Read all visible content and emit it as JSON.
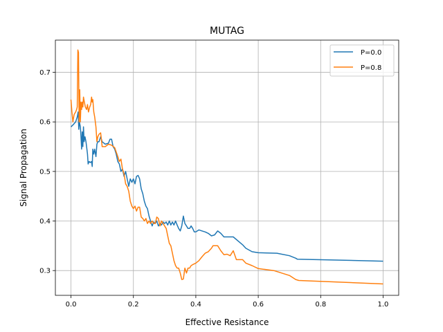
{
  "chart_data": {
    "type": "line",
    "title": "MUTAG",
    "xlabel": "Effective Resistance",
    "ylabel": "Signal Propagation",
    "xlim": [
      -0.05,
      1.05
    ],
    "ylim": [
      0.25,
      0.765
    ],
    "xticks": [
      0.0,
      0.2,
      0.4,
      0.6,
      0.8,
      1.0
    ],
    "xtick_labels": [
      "0.0",
      "0.2",
      "0.4",
      "0.6",
      "0.8",
      "1.0"
    ],
    "yticks": [
      0.3,
      0.4,
      0.5,
      0.6,
      0.7
    ],
    "ytick_labels": [
      "0.3",
      "0.4",
      "0.5",
      "0.6",
      "0.7"
    ],
    "grid": true,
    "legend_position": "top-right",
    "series": [
      {
        "name": "P=0.0",
        "color": "#1f77b4",
        "points": [
          [
            0.0,
            0.59
          ],
          [
            0.008,
            0.595
          ],
          [
            0.015,
            0.6
          ],
          [
            0.02,
            0.61
          ],
          [
            0.023,
            0.62
          ],
          [
            0.025,
            0.585
          ],
          [
            0.027,
            0.6
          ],
          [
            0.03,
            0.59
          ],
          [
            0.032,
            0.57
          ],
          [
            0.034,
            0.545
          ],
          [
            0.036,
            0.58
          ],
          [
            0.038,
            0.55
          ],
          [
            0.04,
            0.59
          ],
          [
            0.042,
            0.56
          ],
          [
            0.045,
            0.57
          ],
          [
            0.048,
            0.56
          ],
          [
            0.05,
            0.55
          ],
          [
            0.053,
            0.535
          ],
          [
            0.055,
            0.515
          ],
          [
            0.058,
            0.52
          ],
          [
            0.062,
            0.518
          ],
          [
            0.066,
            0.52
          ],
          [
            0.068,
            0.51
          ],
          [
            0.07,
            0.545
          ],
          [
            0.073,
            0.535
          ],
          [
            0.076,
            0.545
          ],
          [
            0.08,
            0.53
          ],
          [
            0.083,
            0.555
          ],
          [
            0.086,
            0.56
          ],
          [
            0.09,
            0.56
          ],
          [
            0.095,
            0.57
          ],
          [
            0.1,
            0.56
          ],
          [
            0.11,
            0.555
          ],
          [
            0.12,
            0.557
          ],
          [
            0.125,
            0.565
          ],
          [
            0.13,
            0.565
          ],
          [
            0.135,
            0.55
          ],
          [
            0.14,
            0.545
          ],
          [
            0.145,
            0.535
          ],
          [
            0.15,
            0.52
          ],
          [
            0.155,
            0.515
          ],
          [
            0.16,
            0.5
          ],
          [
            0.165,
            0.505
          ],
          [
            0.17,
            0.49
          ],
          [
            0.175,
            0.5
          ],
          [
            0.18,
            0.485
          ],
          [
            0.185,
            0.47
          ],
          [
            0.19,
            0.485
          ],
          [
            0.195,
            0.478
          ],
          [
            0.2,
            0.485
          ],
          [
            0.205,
            0.475
          ],
          [
            0.21,
            0.49
          ],
          [
            0.215,
            0.492
          ],
          [
            0.22,
            0.485
          ],
          [
            0.225,
            0.465
          ],
          [
            0.23,
            0.455
          ],
          [
            0.235,
            0.44
          ],
          [
            0.24,
            0.43
          ],
          [
            0.245,
            0.425
          ],
          [
            0.25,
            0.41
          ],
          [
            0.255,
            0.4
          ],
          [
            0.26,
            0.39
          ],
          [
            0.265,
            0.398
          ],
          [
            0.27,
            0.395
          ],
          [
            0.275,
            0.4
          ],
          [
            0.28,
            0.39
          ],
          [
            0.285,
            0.395
          ],
          [
            0.29,
            0.392
          ],
          [
            0.295,
            0.398
          ],
          [
            0.3,
            0.395
          ],
          [
            0.305,
            0.398
          ],
          [
            0.31,
            0.392
          ],
          [
            0.315,
            0.4
          ],
          [
            0.32,
            0.392
          ],
          [
            0.325,
            0.398
          ],
          [
            0.33,
            0.392
          ],
          [
            0.335,
            0.4
          ],
          [
            0.34,
            0.392
          ],
          [
            0.345,
            0.385
          ],
          [
            0.35,
            0.38
          ],
          [
            0.355,
            0.39
          ],
          [
            0.36,
            0.41
          ],
          [
            0.365,
            0.395
          ],
          [
            0.37,
            0.39
          ],
          [
            0.375,
            0.385
          ],
          [
            0.38,
            0.385
          ],
          [
            0.385,
            0.39
          ],
          [
            0.39,
            0.385
          ],
          [
            0.395,
            0.378
          ],
          [
            0.4,
            0.378
          ],
          [
            0.41,
            0.382
          ],
          [
            0.42,
            0.38
          ],
          [
            0.43,
            0.378
          ],
          [
            0.44,
            0.375
          ],
          [
            0.45,
            0.37
          ],
          [
            0.46,
            0.372
          ],
          [
            0.47,
            0.38
          ],
          [
            0.48,
            0.375
          ],
          [
            0.49,
            0.368
          ],
          [
            0.5,
            0.368
          ],
          [
            0.52,
            0.368
          ],
          [
            0.55,
            0.352
          ],
          [
            0.56,
            0.345
          ],
          [
            0.58,
            0.338
          ],
          [
            0.6,
            0.336
          ],
          [
            0.66,
            0.335
          ],
          [
            0.7,
            0.33
          ],
          [
            0.72,
            0.325
          ],
          [
            0.725,
            0.323
          ],
          [
            1.0,
            0.319
          ]
        ]
      },
      {
        "name": "P=0.8",
        "color": "#ff7f0e",
        "points": [
          [
            0.0,
            0.645
          ],
          [
            0.003,
            0.62
          ],
          [
            0.006,
            0.6
          ],
          [
            0.01,
            0.615
          ],
          [
            0.015,
            0.62
          ],
          [
            0.018,
            0.625
          ],
          [
            0.02,
            0.63
          ],
          [
            0.022,
            0.745
          ],
          [
            0.024,
            0.74
          ],
          [
            0.026,
            0.6
          ],
          [
            0.028,
            0.665
          ],
          [
            0.03,
            0.6
          ],
          [
            0.032,
            0.64
          ],
          [
            0.034,
            0.625
          ],
          [
            0.036,
            0.64
          ],
          [
            0.038,
            0.63
          ],
          [
            0.04,
            0.65
          ],
          [
            0.043,
            0.64
          ],
          [
            0.046,
            0.63
          ],
          [
            0.05,
            0.625
          ],
          [
            0.053,
            0.635
          ],
          [
            0.056,
            0.62
          ],
          [
            0.06,
            0.63
          ],
          [
            0.063,
            0.635
          ],
          [
            0.066,
            0.65
          ],
          [
            0.068,
            0.64
          ],
          [
            0.07,
            0.645
          ],
          [
            0.073,
            0.62
          ],
          [
            0.076,
            0.61
          ],
          [
            0.08,
            0.59
          ],
          [
            0.083,
            0.56
          ],
          [
            0.086,
            0.57
          ],
          [
            0.09,
            0.575
          ],
          [
            0.095,
            0.578
          ],
          [
            0.1,
            0.55
          ],
          [
            0.11,
            0.55
          ],
          [
            0.12,
            0.555
          ],
          [
            0.13,
            0.553
          ],
          [
            0.14,
            0.548
          ],
          [
            0.15,
            0.53
          ],
          [
            0.155,
            0.52
          ],
          [
            0.16,
            0.525
          ],
          [
            0.165,
            0.505
          ],
          [
            0.17,
            0.495
          ],
          [
            0.175,
            0.475
          ],
          [
            0.18,
            0.47
          ],
          [
            0.185,
            0.46
          ],
          [
            0.19,
            0.44
          ],
          [
            0.195,
            0.43
          ],
          [
            0.2,
            0.425
          ],
          [
            0.205,
            0.43
          ],
          [
            0.21,
            0.42
          ],
          [
            0.215,
            0.428
          ],
          [
            0.22,
            0.428
          ],
          [
            0.225,
            0.408
          ],
          [
            0.23,
            0.405
          ],
          [
            0.235,
            0.4
          ],
          [
            0.24,
            0.405
          ],
          [
            0.245,
            0.395
          ],
          [
            0.25,
            0.4
          ],
          [
            0.255,
            0.395
          ],
          [
            0.26,
            0.4
          ],
          [
            0.265,
            0.395
          ],
          [
            0.27,
            0.395
          ],
          [
            0.275,
            0.408
          ],
          [
            0.28,
            0.405
          ],
          [
            0.285,
            0.39
          ],
          [
            0.29,
            0.4
          ],
          [
            0.295,
            0.395
          ],
          [
            0.3,
            0.39
          ],
          [
            0.305,
            0.385
          ],
          [
            0.31,
            0.37
          ],
          [
            0.315,
            0.355
          ],
          [
            0.32,
            0.35
          ],
          [
            0.325,
            0.335
          ],
          [
            0.33,
            0.32
          ],
          [
            0.335,
            0.31
          ],
          [
            0.34,
            0.305
          ],
          [
            0.345,
            0.305
          ],
          [
            0.35,
            0.295
          ],
          [
            0.355,
            0.282
          ],
          [
            0.36,
            0.283
          ],
          [
            0.365,
            0.305
          ],
          [
            0.37,
            0.295
          ],
          [
            0.375,
            0.305
          ],
          [
            0.38,
            0.305
          ],
          [
            0.385,
            0.31
          ],
          [
            0.39,
            0.312
          ],
          [
            0.4,
            0.315
          ],
          [
            0.41,
            0.32
          ],
          [
            0.42,
            0.328
          ],
          [
            0.43,
            0.335
          ],
          [
            0.44,
            0.338
          ],
          [
            0.45,
            0.345
          ],
          [
            0.455,
            0.35
          ],
          [
            0.47,
            0.35
          ],
          [
            0.48,
            0.34
          ],
          [
            0.49,
            0.332
          ],
          [
            0.5,
            0.333
          ],
          [
            0.51,
            0.33
          ],
          [
            0.52,
            0.34
          ],
          [
            0.53,
            0.322
          ],
          [
            0.54,
            0.322
          ],
          [
            0.55,
            0.322
          ],
          [
            0.56,
            0.315
          ],
          [
            0.58,
            0.31
          ],
          [
            0.6,
            0.304
          ],
          [
            0.65,
            0.3
          ],
          [
            0.7,
            0.29
          ],
          [
            0.72,
            0.282
          ],
          [
            0.73,
            0.28
          ],
          [
            1.0,
            0.273
          ]
        ]
      }
    ]
  }
}
